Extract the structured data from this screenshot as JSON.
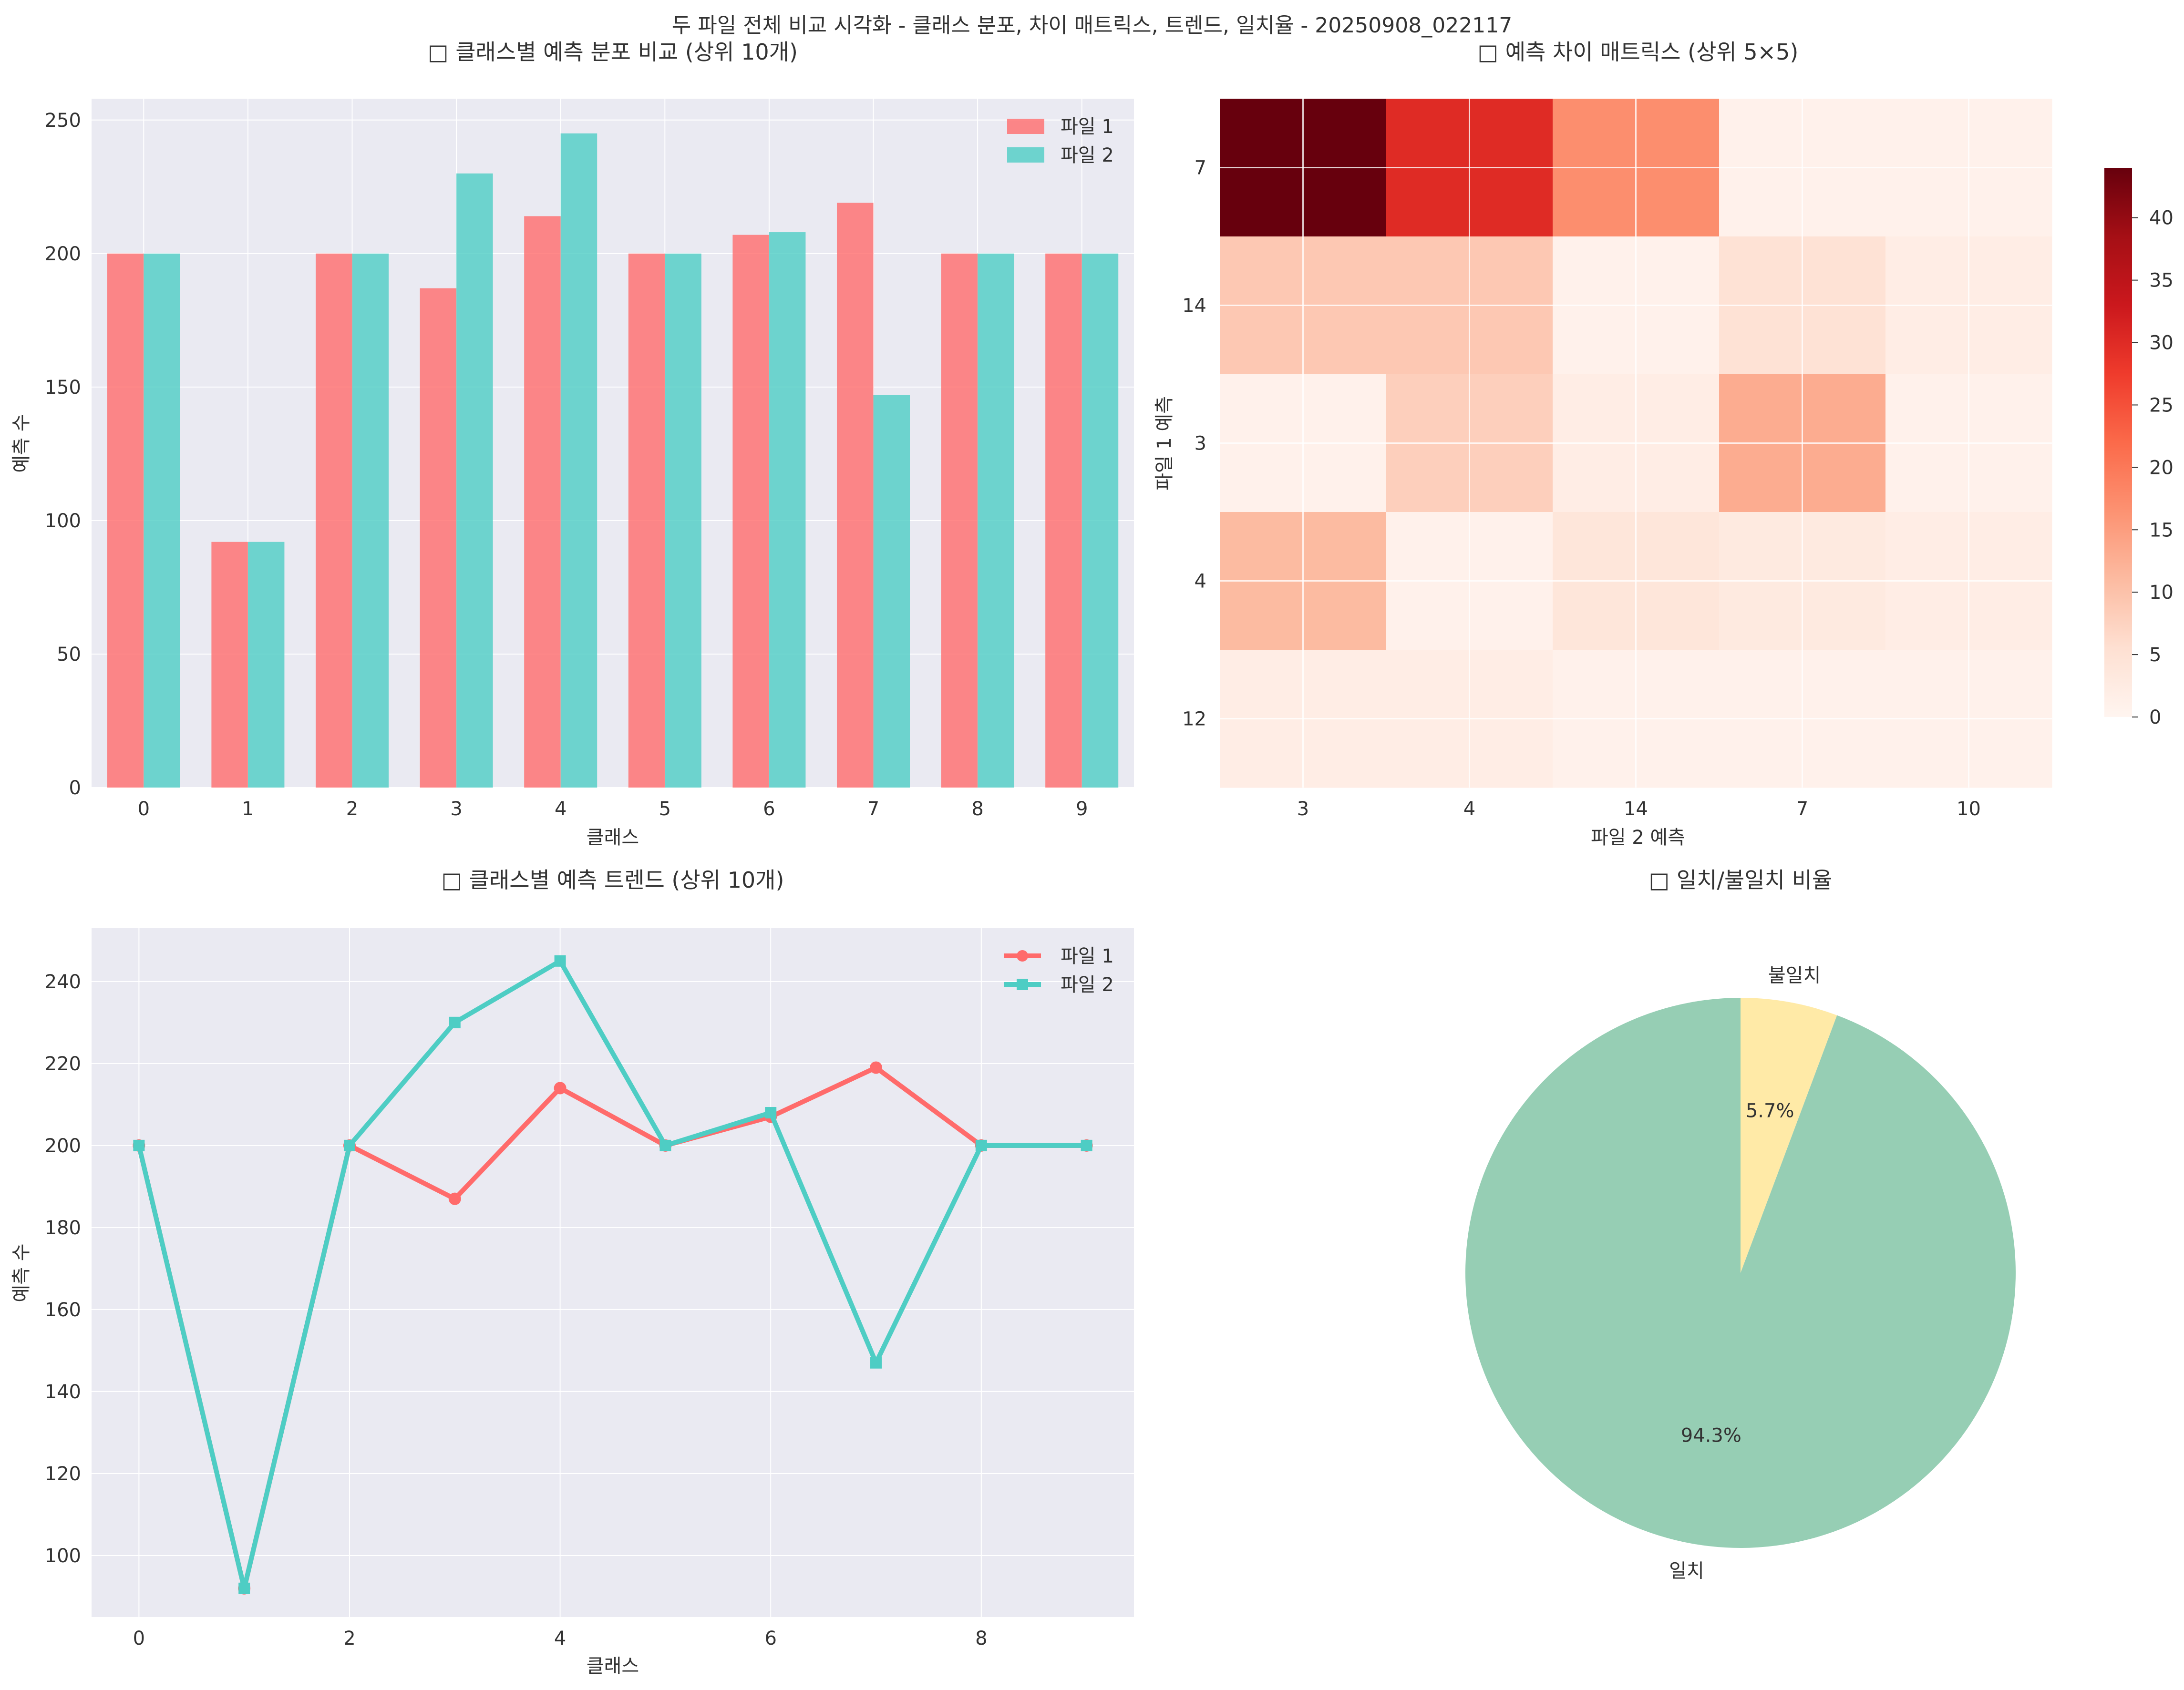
{
  "figure": {
    "suptitle": "두 파일 전체 비교 시각화 - 클래스 분포, 차이 매트릭스, 트렌드, 일치율 - 20250908_022117"
  },
  "colors": {
    "file1": "#FF6B6B",
    "file2": "#4ECDC4",
    "plot_bg": "#EAEAF2",
    "grid": "#FFFFFF",
    "match": "#96CEB4",
    "mismatch": "#FFEAA7"
  },
  "chart_data": [
    {
      "type": "bar",
      "title": "□ 클래스별 예측 분포 비교 (상위 10개)",
      "xlabel": "클래스",
      "ylabel": "예측 수",
      "categories": [
        "0",
        "1",
        "2",
        "3",
        "4",
        "5",
        "6",
        "7",
        "8",
        "9"
      ],
      "series": [
        {
          "name": "파일 1",
          "values": [
            200,
            92,
            200,
            187,
            214,
            200,
            207,
            219,
            200,
            200
          ]
        },
        {
          "name": "파일 2",
          "values": [
            200,
            92,
            200,
            230,
            245,
            200,
            208,
            147,
            200,
            200
          ]
        }
      ],
      "ylim": [
        0,
        258
      ],
      "yticks": [
        0,
        50,
        100,
        150,
        200,
        250
      ],
      "grid": true,
      "legend": "top-right"
    },
    {
      "type": "heatmap",
      "title": "□ 예측 차이 매트릭스 (상위 5×5)",
      "xlabel": "파일 2 예측",
      "ylabel": "파일 1 예측",
      "x_categories": [
        "3",
        "4",
        "14",
        "7",
        "10"
      ],
      "y_categories": [
        "7",
        "14",
        "3",
        "4",
        "12"
      ],
      "values": [
        [
          44,
          30,
          17,
          1,
          1
        ],
        [
          9,
          9,
          1,
          5,
          2
        ],
        [
          1,
          8,
          2,
          13,
          1
        ],
        [
          11,
          1,
          4,
          3,
          2
        ],
        [
          2,
          2,
          1,
          1,
          1
        ]
      ],
      "colorbar": {
        "min": 0,
        "max": 44,
        "ticks": [
          0,
          5,
          10,
          15,
          20,
          25,
          30,
          35,
          40
        ]
      },
      "colormap": "Reds"
    },
    {
      "type": "line",
      "title": "□ 클래스별 예측 트렌드 (상위 10개)",
      "xlabel": "클래스",
      "ylabel": "예측 수",
      "x": [
        0,
        1,
        2,
        3,
        4,
        5,
        6,
        7,
        8,
        9
      ],
      "series": [
        {
          "name": "파일 1",
          "values": [
            200,
            92,
            200,
            187,
            214,
            200,
            207,
            219,
            200,
            200
          ],
          "marker": "circle"
        },
        {
          "name": "파일 2",
          "values": [
            200,
            92,
            200,
            230,
            245,
            200,
            208,
            147,
            200,
            200
          ],
          "marker": "square"
        }
      ],
      "xlim": [
        -0.45,
        9.45
      ],
      "ylim": [
        85,
        253
      ],
      "xticks": [
        0,
        2,
        4,
        6,
        8
      ],
      "yticks": [
        100,
        120,
        140,
        160,
        180,
        200,
        220,
        240
      ],
      "grid": true,
      "legend": "top-right"
    },
    {
      "type": "pie",
      "title": "□ 일치/불일치 비율",
      "slices": [
        {
          "label": "일치",
          "value": 94.3,
          "pct_label": "94.3%"
        },
        {
          "label": "불일치",
          "value": 5.7,
          "pct_label": "5.7%"
        }
      ]
    }
  ]
}
